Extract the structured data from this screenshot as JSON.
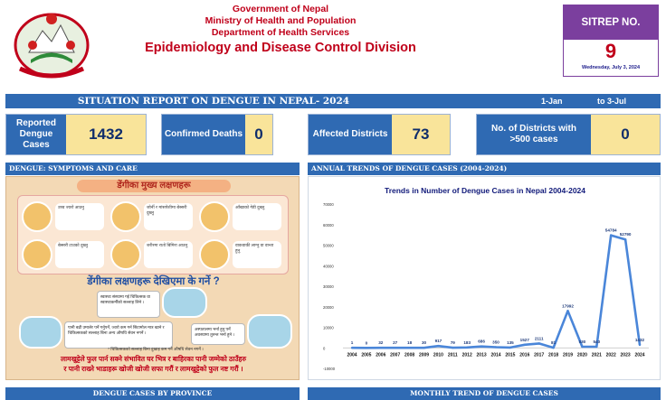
{
  "header": {
    "gov": "Government of Nepal",
    "ministry": "Ministry of Health and Population",
    "department": "Department of Health Services",
    "division": "Epidemiology and Disease Control Division"
  },
  "sitrep": {
    "label": "SITREP NO.",
    "number": "9",
    "date": "Wednesday, July 3, 2024"
  },
  "title_bar": {
    "title": "SITUATION REPORT ON DENGUE IN NEPAL- 2024",
    "from": "1-Jan",
    "to": "to    3-Jul"
  },
  "stats": [
    {
      "label": "Reported Dengue Cases",
      "value": "1432"
    },
    {
      "label": "Confirmed Deaths",
      "value": "0"
    },
    {
      "label": "Affected Districts",
      "value": "73"
    },
    {
      "label": "No. of Districts with >500 cases",
      "value": "0"
    }
  ],
  "sections": {
    "symptoms": "DENGUE: SYMPTOMS AND CARE",
    "trends": "ANNUAL TRENDS OF DENGUE CASES (2004-2024)",
    "province": "DENGUE CASES BY PROVINCE",
    "monthly": "MONTHLY TREND OF DENGUE CASES"
  },
  "symptoms": {
    "heading": "डेंगीका मुख्य लक्षणहरू",
    "items": [
      "उच्च ज्वरो आउनु",
      "जोर्नी र मांसपेशीमा बेस्सरी दुख्नु",
      "आँखाको गेडी दुख्नु",
      "बेस्सरी टाउको दुख्नु",
      "शरीरमा रातो बिमिरा आउनु",
      "वाकवाकी लाग्नु वा वान्ता हुनु"
    ],
    "question": "डेंगीका लक्षणहरू देखिएमा के गर्ने ?",
    "care": [
      "स्वास्थ्य संस्थामा गई चिकित्सक वा स्वास्थ्यकर्मीको सल्लाह लिने ।",
      "पानी बढी उमालेर पर्ने गर्नुपर्ने, ज्वरो कम गर्न सिटामोल मात्र खाने र चिकित्सकको सल्लाह बिना अन्य औषधि सेवन नगर्ने ।",
      "अस्पतालमा भर्ना हुनु पर्ने अवस्थामा तुरुन्त भर्ना हुने ।"
    ],
    "note": "* चिकित्सकको सल्लाह बिना दुखाइ कम गर्ने औषधि सेवन नगर्ने ।",
    "footer1": "लामखुट्टेले फुल पार्न सक्ने संभावित घर भित्र र बाहिरका पानी जम्मेको ठाउँहरु",
    "footer2": "र पानी राख्ने भाडाहरू खोजी खोजी सफा गरौं र लामखुट्टेको फुल नष्ट गरौं ।"
  },
  "chart_data": {
    "type": "line",
    "title": "Trends in Number of Dengue Cases in Nepal 2004-2024",
    "categories": [
      "2004",
      "2005",
      "2006",
      "2007",
      "2008",
      "2009",
      "2010",
      "2011",
      "2012",
      "2013",
      "2014",
      "2015",
      "2016",
      "2017",
      "2018",
      "2019",
      "2020",
      "2021",
      "2022",
      "2023",
      "2024"
    ],
    "values": [
      1,
      0,
      32,
      27,
      18,
      30,
      917,
      79,
      183,
      686,
      350,
      135,
      1527,
      2111,
      81,
      17992,
      530,
      540,
      54784,
      52790,
      1432
    ],
    "labels": [
      "1",
      "0",
      "32",
      "27",
      "18",
      "30",
      "917",
      "79",
      "183",
      "686",
      "350",
      "135",
      "1527",
      "2111",
      "81",
      "17992",
      "530",
      "540",
      "54784",
      "52790",
      "1432"
    ],
    "y_ticks": [
      "-10000",
      "0",
      "10000",
      "20000",
      "30000",
      "40000",
      "50000",
      "60000",
      "70000"
    ],
    "ylim": [
      -10000,
      70000
    ],
    "grid": false,
    "color": "#4a86d9"
  }
}
